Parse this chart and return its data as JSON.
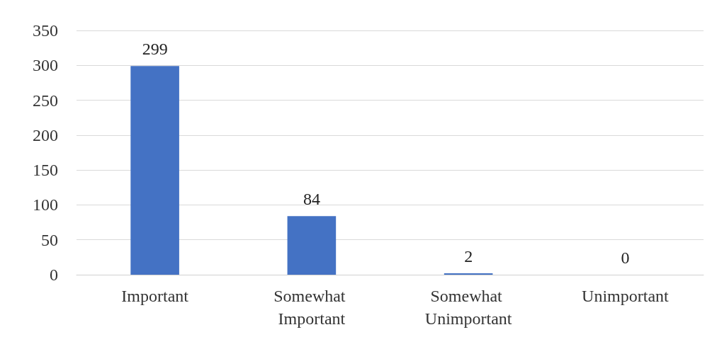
{
  "chart_data": {
    "type": "bar",
    "categories": [
      "Important",
      "Somewhat Important",
      "Somewhat Unimportant",
      "Unimportant"
    ],
    "values": [
      299,
      84,
      2,
      0
    ],
    "color": "#4472c4",
    "ylim": [
      0,
      350
    ],
    "yticks": [
      0,
      50,
      100,
      150,
      200,
      250,
      300,
      350
    ],
    "grid": "y",
    "data_labels": true
  }
}
